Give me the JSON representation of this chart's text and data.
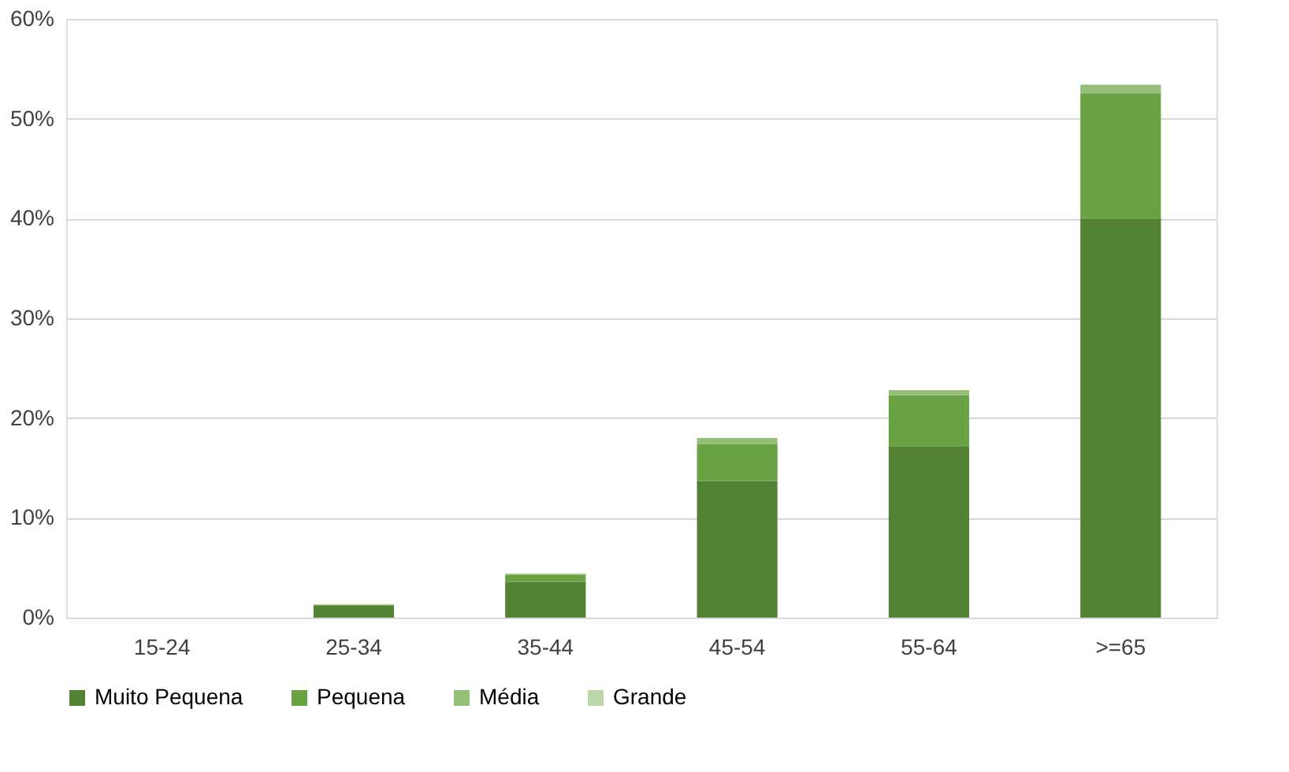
{
  "chart_data": {
    "type": "bar",
    "stacked": true,
    "categories": [
      "15-24",
      "25-34",
      "35-44",
      "45-54",
      "55-64",
      ">=65"
    ],
    "series": [
      {
        "name": "Muito Pequena",
        "color": "#548235",
        "values": [
          0,
          1.2,
          3.6,
          13.7,
          17.2,
          40.0
        ]
      },
      {
        "name": "Pequena",
        "color": "#6aa343",
        "values": [
          0,
          0.1,
          0.7,
          3.7,
          5.1,
          12.5
        ]
      },
      {
        "name": "Média",
        "color": "#93bf76",
        "values": [
          0,
          0,
          0.1,
          0.6,
          0.5,
          0.9
        ]
      },
      {
        "name": "Grande",
        "color": "#bdd7a9",
        "values": [
          null,
          null,
          null,
          null,
          null,
          null
        ]
      }
    ],
    "ylim": [
      0,
      60
    ],
    "yticks": [
      {
        "value": 0,
        "label": "0%"
      },
      {
        "value": 10,
        "label": "10%"
      },
      {
        "value": 20,
        "label": "20%"
      },
      {
        "value": 30,
        "label": "30%"
      },
      {
        "value": 40,
        "label": "40%"
      },
      {
        "value": 50,
        "label": "50%"
      },
      {
        "value": 60,
        "label": "60%"
      }
    ],
    "grid": "y",
    "legend": "bottom"
  }
}
